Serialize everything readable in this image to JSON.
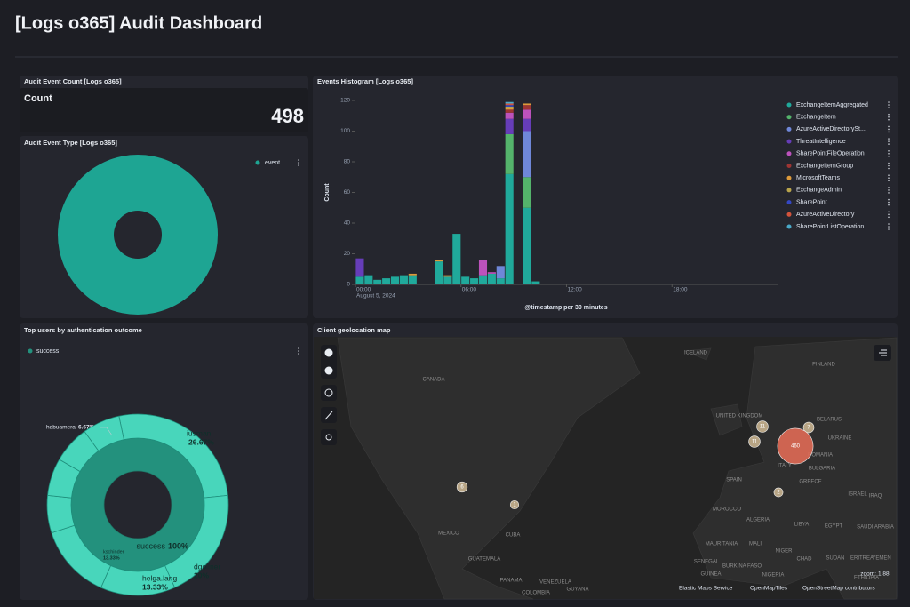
{
  "header": {
    "title": "[Logs o365] Audit Dashboard"
  },
  "count_panel": {
    "title": "Audit Event Count [Logs o365]",
    "label": "Count",
    "value": 498
  },
  "chart_data": [
    {
      "type": "pie",
      "title": "Audit Event Type [Logs o365]",
      "donut": true,
      "legend": "top-right",
      "categories": [
        "event"
      ],
      "values": [
        100
      ],
      "colors": [
        "#1ea593"
      ]
    },
    {
      "type": "bar",
      "stacked": true,
      "title": "Events Histogram [Logs o365]",
      "y_label": "Count",
      "x_label": "@timestamp per 30 minutes",
      "x_sublabel": "August 5, 2024",
      "x": [
        0,
        0.5,
        1,
        1.5,
        2,
        2.5,
        3,
        3.5,
        4,
        4.5,
        5,
        5.5,
        6,
        6.5,
        7,
        7.5,
        8,
        8.5,
        9,
        9.5,
        10
      ],
      "xlim": [
        0,
        24
      ],
      "xticks": [
        {
          "value": 0,
          "label": "00:00"
        },
        {
          "value": 6,
          "label": "06:00"
        },
        {
          "value": 12,
          "label": "12:00"
        },
        {
          "value": 18,
          "label": "18:00"
        }
      ],
      "ylim": [
        0,
        120
      ],
      "yticks": [
        0,
        20,
        40,
        60,
        80,
        100,
        120
      ],
      "legend": "right",
      "series": [
        {
          "name": "ExchangeItemAggregated",
          "color": "#20a99b",
          "values": [
            5,
            6,
            3,
            4,
            5,
            6,
            6,
            0,
            0,
            15,
            5,
            33,
            5,
            4,
            6,
            7,
            4,
            72,
            0,
            50,
            2
          ]
        },
        {
          "name": "ExchangeItem",
          "color": "#54b36b",
          "values": [
            0,
            0,
            0,
            0,
            0,
            0,
            0,
            0,
            0,
            0,
            0,
            0,
            0,
            0,
            0,
            0,
            0,
            26,
            0,
            20,
            0
          ]
        },
        {
          "name": "AzureActiveDirectorySt...",
          "color": "#6f87d8",
          "values": [
            0,
            0,
            0,
            0,
            0,
            0,
            0,
            0,
            0,
            0,
            0,
            0,
            0,
            0,
            0,
            0,
            8,
            0,
            0,
            30,
            0
          ]
        },
        {
          "name": "ThreatIntelligence",
          "color": "#663db8",
          "values": [
            12,
            0,
            0,
            0,
            0,
            0,
            0,
            0,
            0,
            0,
            0,
            0,
            0,
            0,
            0,
            0,
            0,
            10,
            0,
            8,
            0
          ]
        },
        {
          "name": "SharePointFileOperation",
          "color": "#bc52bc",
          "values": [
            0,
            0,
            0,
            0,
            0,
            0,
            0,
            0,
            0,
            0,
            0,
            0,
            0,
            0,
            10,
            1,
            0,
            4,
            0,
            6,
            0
          ]
        },
        {
          "name": "ExchangeItemGroup",
          "color": "#9e3533",
          "values": [
            0,
            0,
            0,
            0,
            0,
            0,
            0,
            0,
            0,
            0,
            0,
            0,
            0,
            0,
            0,
            0,
            0,
            2,
            0,
            3,
            0
          ]
        },
        {
          "name": "MicrosoftTeams",
          "color": "#dd9a3b",
          "values": [
            0,
            0,
            0,
            0,
            0,
            0,
            1,
            0,
            0,
            1,
            1,
            0,
            0,
            0,
            0,
            0,
            0,
            1,
            0,
            1,
            0
          ]
        },
        {
          "name": "ExchangeAdmin",
          "color": "#b8a44c",
          "values": [
            0,
            0,
            0,
            0,
            0,
            0,
            0,
            0,
            0,
            0,
            0,
            0,
            0,
            0,
            0,
            0,
            0,
            1,
            0,
            0,
            0
          ]
        },
        {
          "name": "SharePoint",
          "color": "#3447c4",
          "values": [
            0,
            0,
            0,
            0,
            0,
            0,
            0,
            0,
            0,
            0,
            0,
            0,
            0,
            0,
            0,
            0,
            0,
            1,
            0,
            0,
            0
          ]
        },
        {
          "name": "AzureActiveDirectory",
          "color": "#d3533b",
          "values": [
            0,
            0,
            0,
            0,
            0,
            0,
            0,
            0,
            0,
            0,
            0,
            0,
            0,
            0,
            0,
            0,
            0,
            1,
            0,
            0,
            0
          ]
        },
        {
          "name": "SharePointListOperation",
          "color": "#4aa9c8",
          "values": [
            0,
            0,
            0,
            0,
            0,
            0,
            0,
            0,
            0,
            0,
            0,
            0,
            0,
            0,
            0,
            0,
            0,
            1,
            0,
            0,
            0
          ]
        }
      ]
    },
    {
      "type": "sunburst",
      "title": "Top users by authentication outcome",
      "legend": "top-left",
      "inner": {
        "name": "success",
        "value": 100,
        "value_label": "100%",
        "color": "#23917d"
      },
      "outer_color": "#48d6bb",
      "categories": [
        "iusman",
        "dgollner",
        "helga.lang",
        "kschinder",
        null,
        null,
        "habuamera",
        null
      ],
      "values": [
        26.67,
        20,
        13.33,
        13.33,
        6.67,
        6.67,
        6.67,
        6.67
      ],
      "value_labels": [
        "26.67%",
        "20%",
        "13.33%",
        "13.33%",
        null,
        null,
        "6.67%",
        null
      ]
    }
  ],
  "map": {
    "title": "Client geolocation map",
    "places": [
      "ICELAND",
      "FINLAND",
      "CANADA",
      "UNITED KINGDOM",
      "BELARUS",
      "UKRAINE",
      "ROMANIA",
      "ITALY",
      "BULGARIA",
      "SPAIN",
      "GREECE",
      "MOROCCO",
      "ALGERIA",
      "LIBYA",
      "EGYPT",
      "ISRAEL",
      "IRAQ",
      "SAUDI ARABIA",
      "MAURITANIA",
      "MALI",
      "NIGER",
      "CHAD",
      "SUDAN",
      "ERITREA",
      "YEMEN",
      "SENEGAL",
      "BURKINA FASO",
      "NIGERIA",
      "GUINEA",
      "ETHIOPIA",
      "MEXICO",
      "CUBA",
      "GUATEMALA",
      "PANAMA",
      "VENEZUELA",
      "COLOMBIA",
      "GUYANA"
    ],
    "clusters": [
      {
        "count": 11
      },
      {
        "count": 7
      },
      {
        "count": 11
      },
      {
        "count": 460
      },
      {
        "count": 6
      },
      {
        "count": 1
      },
      {
        "count": 2
      }
    ],
    "zoom_label": "zoom:",
    "zoom": 1.88,
    "attribution": [
      "Elastic Maps Service",
      "OpenMapTiles",
      "OpenStreetMap contributors"
    ]
  }
}
